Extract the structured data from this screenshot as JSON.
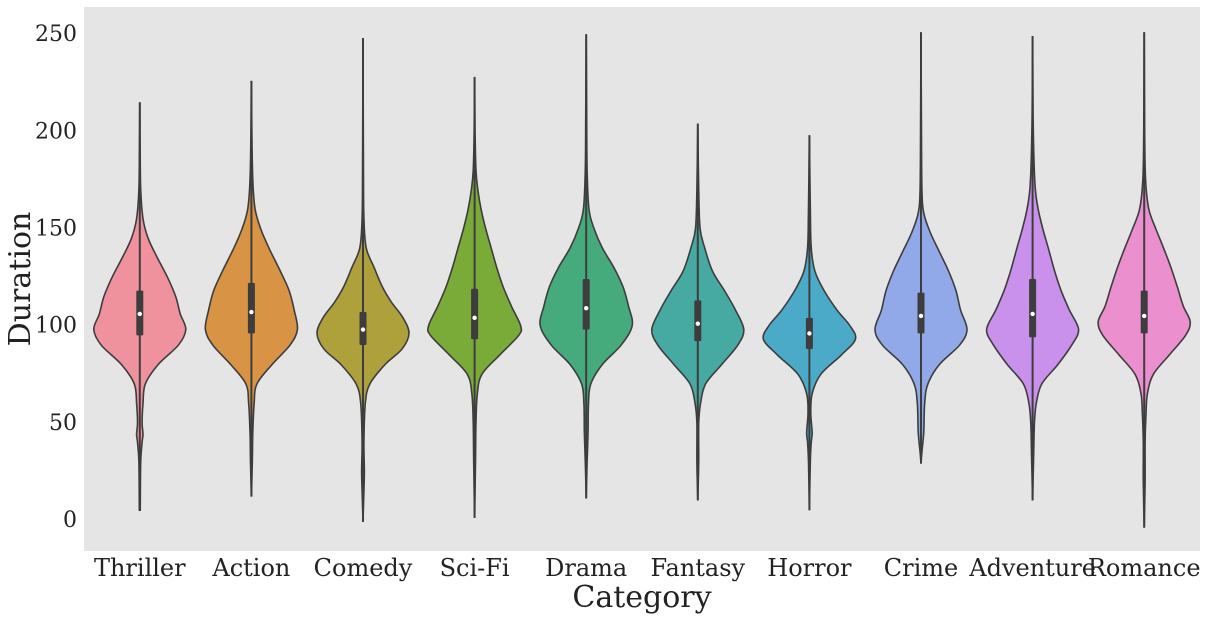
{
  "chart_data": {
    "type": "violin",
    "title": "",
    "xlabel": "Category",
    "ylabel": "Duration",
    "ylim": [
      -16,
      264
    ],
    "yticks": [
      0,
      50,
      100,
      150,
      200,
      250
    ],
    "grid": false,
    "background": "#e5e5e5",
    "categories": [
      "Thriller",
      "Action",
      "Comedy",
      "Sci-Fi",
      "Drama",
      "Fantasy",
      "Horror",
      "Crime",
      "Adventure",
      "Romance"
    ],
    "series": [
      {
        "category": "Thriller",
        "color": "#f0919e",
        "min": 5,
        "q1": 95,
        "median": 106,
        "q3": 118,
        "max": 215,
        "density": [
          [
            5,
            0.01
          ],
          [
            30,
            0.02
          ],
          [
            40,
            0.05
          ],
          [
            44,
            0.07
          ],
          [
            50,
            0.05
          ],
          [
            60,
            0.07
          ],
          [
            70,
            0.12
          ],
          [
            80,
            0.4
          ],
          [
            90,
            0.84
          ],
          [
            98,
            1.0
          ],
          [
            106,
            0.88
          ],
          [
            115,
            0.78
          ],
          [
            125,
            0.6
          ],
          [
            135,
            0.38
          ],
          [
            145,
            0.18
          ],
          [
            155,
            0.07
          ],
          [
            170,
            0.02
          ],
          [
            190,
            0.008
          ],
          [
            215,
            0.0
          ]
        ]
      },
      {
        "category": "Action",
        "color": "#d89444",
        "min": 12,
        "q1": 96,
        "median": 107,
        "q3": 122,
        "max": 226,
        "density": [
          [
            12,
            0.0
          ],
          [
            30,
            0.02
          ],
          [
            45,
            0.03
          ],
          [
            60,
            0.06
          ],
          [
            70,
            0.12
          ],
          [
            80,
            0.45
          ],
          [
            90,
            0.84
          ],
          [
            98,
            1.0
          ],
          [
            108,
            0.93
          ],
          [
            118,
            0.82
          ],
          [
            128,
            0.63
          ],
          [
            140,
            0.38
          ],
          [
            150,
            0.2
          ],
          [
            160,
            0.08
          ],
          [
            175,
            0.03
          ],
          [
            200,
            0.01
          ],
          [
            226,
            0.0
          ]
        ]
      },
      {
        "category": "Comedy",
        "color": "#aea13c",
        "min": -1,
        "q1": 90,
        "median": 98,
        "q3": 107,
        "max": 248,
        "density": [
          [
            -1,
            0.0
          ],
          [
            15,
            0.02
          ],
          [
            25,
            0.03
          ],
          [
            40,
            0.02
          ],
          [
            60,
            0.05
          ],
          [
            70,
            0.15
          ],
          [
            80,
            0.48
          ],
          [
            88,
            0.85
          ],
          [
            96,
            1.0
          ],
          [
            104,
            0.87
          ],
          [
            112,
            0.62
          ],
          [
            120,
            0.42
          ],
          [
            130,
            0.24
          ],
          [
            140,
            0.07
          ],
          [
            155,
            0.02
          ],
          [
            180,
            0.01
          ],
          [
            248,
            0.0
          ]
        ]
      },
      {
        "category": "Sci-Fi",
        "color": "#7aaa38",
        "min": 1,
        "q1": 93,
        "median": 104,
        "q3": 119,
        "max": 228,
        "density": [
          [
            1,
            0.0
          ],
          [
            30,
            0.02
          ],
          [
            50,
            0.03
          ],
          [
            65,
            0.06
          ],
          [
            75,
            0.16
          ],
          [
            85,
            0.55
          ],
          [
            95,
            0.96
          ],
          [
            100,
            1.0
          ],
          [
            110,
            0.8
          ],
          [
            120,
            0.62
          ],
          [
            130,
            0.48
          ],
          [
            140,
            0.36
          ],
          [
            150,
            0.24
          ],
          [
            160,
            0.14
          ],
          [
            170,
            0.07
          ],
          [
            180,
            0.03
          ],
          [
            200,
            0.01
          ],
          [
            228,
            0.0
          ]
        ]
      },
      {
        "category": "Drama",
        "color": "#45aa7c",
        "min": 11,
        "q1": 98,
        "median": 109,
        "q3": 124,
        "max": 250,
        "density": [
          [
            11,
            0.0
          ],
          [
            30,
            0.02
          ],
          [
            45,
            0.04
          ],
          [
            60,
            0.05
          ],
          [
            70,
            0.1
          ],
          [
            80,
            0.35
          ],
          [
            90,
            0.76
          ],
          [
            100,
            1.0
          ],
          [
            110,
            0.92
          ],
          [
            120,
            0.8
          ],
          [
            130,
            0.6
          ],
          [
            140,
            0.35
          ],
          [
            150,
            0.17
          ],
          [
            160,
            0.06
          ],
          [
            180,
            0.02
          ],
          [
            210,
            0.01
          ],
          [
            250,
            0.0
          ]
        ]
      },
      {
        "category": "Fantasy",
        "color": "#46aaa3",
        "min": 10,
        "q1": 92,
        "median": 101,
        "q3": 113,
        "max": 204,
        "density": [
          [
            10,
            0.0
          ],
          [
            30,
            0.02
          ],
          [
            50,
            0.02
          ],
          [
            60,
            0.06
          ],
          [
            70,
            0.17
          ],
          [
            80,
            0.52
          ],
          [
            90,
            0.87
          ],
          [
            98,
            1.0
          ],
          [
            108,
            0.82
          ],
          [
            118,
            0.58
          ],
          [
            128,
            0.32
          ],
          [
            140,
            0.15
          ],
          [
            150,
            0.05
          ],
          [
            170,
            0.02
          ],
          [
            204,
            0.0
          ]
        ]
      },
      {
        "category": "Horror",
        "color": "#4aaac8",
        "min": 5,
        "q1": 88,
        "median": 96,
        "q3": 104,
        "max": 198,
        "density": [
          [
            5,
            0.0
          ],
          [
            30,
            0.02
          ],
          [
            40,
            0.04
          ],
          [
            45,
            0.06
          ],
          [
            55,
            0.03
          ],
          [
            65,
            0.06
          ],
          [
            75,
            0.25
          ],
          [
            85,
            0.7
          ],
          [
            93,
            1.0
          ],
          [
            100,
            0.88
          ],
          [
            108,
            0.6
          ],
          [
            118,
            0.32
          ],
          [
            128,
            0.12
          ],
          [
            140,
            0.04
          ],
          [
            160,
            0.02
          ],
          [
            198,
            0.0
          ]
        ]
      },
      {
        "category": "Crime",
        "color": "#91a9e8",
        "min": 29,
        "q1": 96,
        "median": 105,
        "q3": 117,
        "max": 251,
        "density": [
          [
            29,
            0.0
          ],
          [
            35,
            0.02
          ],
          [
            45,
            0.06
          ],
          [
            60,
            0.08
          ],
          [
            70,
            0.15
          ],
          [
            80,
            0.4
          ],
          [
            90,
            0.84
          ],
          [
            98,
            1.0
          ],
          [
            108,
            0.86
          ],
          [
            118,
            0.76
          ],
          [
            128,
            0.6
          ],
          [
            138,
            0.4
          ],
          [
            148,
            0.2
          ],
          [
            158,
            0.06
          ],
          [
            170,
            0.02
          ],
          [
            200,
            0.01
          ],
          [
            251,
            0.0
          ]
        ]
      },
      {
        "category": "Adventure",
        "color": "#c990ec",
        "min": 10,
        "q1": 94,
        "median": 106,
        "q3": 124,
        "max": 249,
        "density": [
          [
            10,
            0.0
          ],
          [
            30,
            0.02
          ],
          [
            50,
            0.04
          ],
          [
            60,
            0.08
          ],
          [
            70,
            0.2
          ],
          [
            80,
            0.55
          ],
          [
            90,
            0.85
          ],
          [
            98,
            1.0
          ],
          [
            108,
            0.8
          ],
          [
            118,
            0.62
          ],
          [
            128,
            0.48
          ],
          [
            140,
            0.34
          ],
          [
            150,
            0.22
          ],
          [
            160,
            0.12
          ],
          [
            170,
            0.06
          ],
          [
            185,
            0.03
          ],
          [
            210,
            0.01
          ],
          [
            249,
            0.0
          ]
        ]
      },
      {
        "category": "Romance",
        "color": "#ec8fce",
        "min": -4,
        "q1": 96,
        "median": 105,
        "q3": 118,
        "max": 251,
        "density": [
          [
            -4,
            0.0
          ],
          [
            20,
            0.02
          ],
          [
            40,
            0.02
          ],
          [
            55,
            0.04
          ],
          [
            65,
            0.07
          ],
          [
            75,
            0.2
          ],
          [
            85,
            0.55
          ],
          [
            95,
            0.9
          ],
          [
            102,
            1.0
          ],
          [
            110,
            0.85
          ],
          [
            120,
            0.72
          ],
          [
            130,
            0.58
          ],
          [
            140,
            0.42
          ],
          [
            150,
            0.25
          ],
          [
            160,
            0.1
          ],
          [
            175,
            0.03
          ],
          [
            200,
            0.01
          ],
          [
            251,
            0.0
          ]
        ]
      }
    ]
  }
}
